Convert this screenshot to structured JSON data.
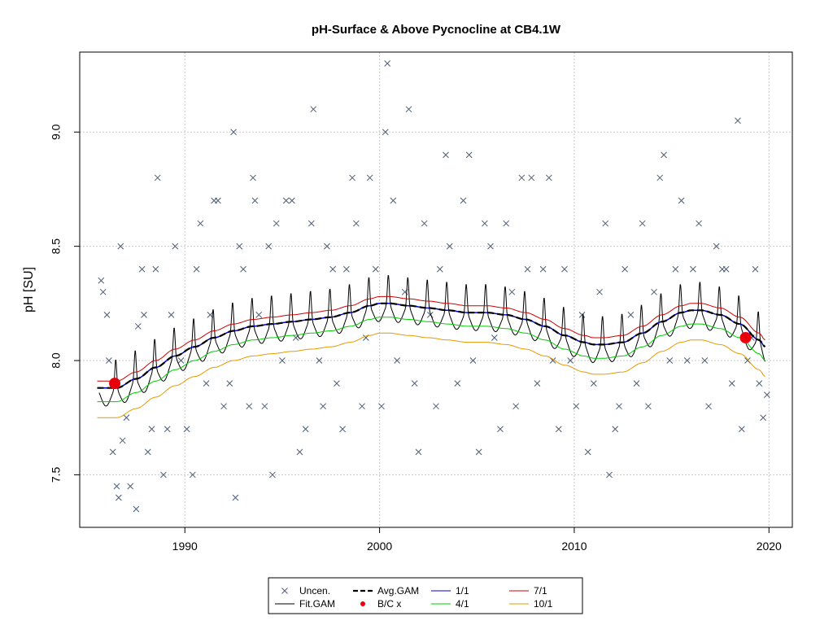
{
  "chart_data": {
    "type": "line",
    "title": "pH-Surface & Above Pycnocline at CB4.1W",
    "xlabel": "",
    "ylabel": "pH [SU]",
    "xlim": [
      1984.6,
      2021.2
    ],
    "ylim": [
      7.27,
      9.35
    ],
    "x_ticks": [
      1990,
      2000,
      2010,
      2020
    ],
    "y_ticks": [
      7.5,
      8.0,
      8.5,
      9.0
    ],
    "x_tick_labels": [
      "1990",
      "2000",
      "2010",
      "2020"
    ],
    "y_tick_labels": [
      "7.5",
      "8.0",
      "8.5",
      "9.0"
    ],
    "grid": true,
    "legend_position": "bottom-center",
    "legend": [
      {
        "key": "uncen",
        "label": "Uncen.",
        "marker": "x",
        "color": "#4d5d73"
      },
      {
        "key": "fit",
        "label": "Fit.GAM",
        "marker": "line",
        "color": "#000000"
      },
      {
        "key": "avg",
        "label": "Avg.GAM",
        "marker": "dashed",
        "color": "#000000"
      },
      {
        "key": "bc",
        "label": "B/C x",
        "marker": "dot",
        "color": "#e8000b"
      },
      {
        "key": "p11",
        "label": "1/1",
        "marker": "line",
        "color": "#0000cc"
      },
      {
        "key": "p41",
        "label": "4/1",
        "marker": "line",
        "color": "#00cc00"
      },
      {
        "key": "p71",
        "label": "7/1",
        "marker": "line",
        "color": "#cc0000"
      },
      {
        "key": "p101",
        "label": "10/1",
        "marker": "line",
        "color": "#e69a00"
      }
    ],
    "avg_gam": {
      "x": [
        1985.5,
        1986.5,
        1987.5,
        1988.5,
        1989.5,
        1990.5,
        1991.5,
        1992.5,
        1993.5,
        1994.5,
        1995.5,
        1996.5,
        1997.5,
        1998.5,
        1999.5,
        2000.0,
        2000.5,
        2001.5,
        2002.5,
        2003.5,
        2004.5,
        2005.5,
        2006.5,
        2007.5,
        2008.5,
        2009.5,
        2010.5,
        2011.0,
        2011.5,
        2012.5,
        2013.5,
        2014.5,
        2015.5,
        2016.0,
        2016.5,
        2017.5,
        2018.5,
        2019.5,
        2019.8
      ],
      "y": [
        7.88,
        7.88,
        7.92,
        7.97,
        8.02,
        8.06,
        8.1,
        8.13,
        8.15,
        8.16,
        8.17,
        8.18,
        8.19,
        8.21,
        8.24,
        8.25,
        8.25,
        8.24,
        8.23,
        8.22,
        8.21,
        8.21,
        8.2,
        8.18,
        8.15,
        8.11,
        8.08,
        8.07,
        8.07,
        8.08,
        8.12,
        8.17,
        8.21,
        8.22,
        8.22,
        8.2,
        8.16,
        8.09,
        8.06
      ]
    },
    "seasonal_offsets": {
      "p11": 0.0,
      "p41": -0.06,
      "p71": 0.03,
      "p101": -0.13
    },
    "fit_gam": {
      "start": 1985.6,
      "end": 2019.8,
      "seasonal_amplitude": 0.24
    },
    "bc_points": [
      {
        "x": 1986.4,
        "y": 7.9
      },
      {
        "x": 2018.8,
        "y": 8.1
      }
    ],
    "uncen": [
      [
        1985.7,
        8.35
      ],
      [
        1985.8,
        8.3
      ],
      [
        1986.0,
        8.2
      ],
      [
        1986.1,
        8.0
      ],
      [
        1986.3,
        7.6
      ],
      [
        1986.5,
        7.45
      ],
      [
        1986.6,
        7.4
      ],
      [
        1986.7,
        8.5
      ],
      [
        1986.8,
        7.65
      ],
      [
        1987.0,
        7.75
      ],
      [
        1987.2,
        7.45
      ],
      [
        1987.5,
        7.35
      ],
      [
        1987.6,
        8.15
      ],
      [
        1987.8,
        8.4
      ],
      [
        1987.9,
        8.2
      ],
      [
        1988.1,
        7.6
      ],
      [
        1988.3,
        7.7
      ],
      [
        1988.5,
        8.4
      ],
      [
        1988.6,
        8.8
      ],
      [
        1988.9,
        7.5
      ],
      [
        1989.1,
        7.7
      ],
      [
        1989.3,
        8.2
      ],
      [
        1989.5,
        8.5
      ],
      [
        1989.8,
        8.0
      ],
      [
        1990.1,
        7.7
      ],
      [
        1990.4,
        7.5
      ],
      [
        1990.6,
        8.4
      ],
      [
        1990.8,
        8.6
      ],
      [
        1991.1,
        7.9
      ],
      [
        1991.3,
        8.2
      ],
      [
        1991.5,
        8.7
      ],
      [
        1991.7,
        8.7
      ],
      [
        1992.0,
        7.8
      ],
      [
        1992.3,
        7.9
      ],
      [
        1992.5,
        9.0
      ],
      [
        1992.6,
        7.4
      ],
      [
        1992.8,
        8.5
      ],
      [
        1993.0,
        8.4
      ],
      [
        1993.3,
        7.8
      ],
      [
        1993.5,
        8.8
      ],
      [
        1993.6,
        8.7
      ],
      [
        1993.8,
        8.2
      ],
      [
        1994.1,
        7.8
      ],
      [
        1994.3,
        8.5
      ],
      [
        1994.5,
        7.5
      ],
      [
        1994.7,
        8.6
      ],
      [
        1995.0,
        8.0
      ],
      [
        1995.2,
        8.7
      ],
      [
        1995.5,
        8.7
      ],
      [
        1995.7,
        8.1
      ],
      [
        1995.9,
        7.6
      ],
      [
        1996.2,
        7.7
      ],
      [
        1996.5,
        8.6
      ],
      [
        1996.6,
        9.1
      ],
      [
        1996.9,
        8.0
      ],
      [
        1997.1,
        7.8
      ],
      [
        1997.3,
        8.5
      ],
      [
        1997.6,
        8.4
      ],
      [
        1997.8,
        7.9
      ],
      [
        1998.1,
        7.7
      ],
      [
        1998.3,
        8.4
      ],
      [
        1998.6,
        8.8
      ],
      [
        1998.8,
        8.6
      ],
      [
        1999.1,
        7.8
      ],
      [
        1999.3,
        8.1
      ],
      [
        1999.5,
        8.8
      ],
      [
        1999.8,
        8.4
      ],
      [
        2000.1,
        7.8
      ],
      [
        2000.3,
        9.0
      ],
      [
        2000.4,
        9.3
      ],
      [
        2000.7,
        8.7
      ],
      [
        2000.9,
        8.0
      ],
      [
        2001.3,
        8.3
      ],
      [
        2001.5,
        9.1
      ],
      [
        2001.8,
        7.9
      ],
      [
        2002.0,
        7.6
      ],
      [
        2002.3,
        8.6
      ],
      [
        2002.6,
        8.2
      ],
      [
        2002.9,
        7.8
      ],
      [
        2003.1,
        8.4
      ],
      [
        2003.4,
        8.9
      ],
      [
        2003.6,
        8.5
      ],
      [
        2004.0,
        7.9
      ],
      [
        2004.3,
        8.7
      ],
      [
        2004.6,
        8.9
      ],
      [
        2004.8,
        8.0
      ],
      [
        2005.1,
        7.6
      ],
      [
        2005.4,
        8.6
      ],
      [
        2005.7,
        8.5
      ],
      [
        2005.9,
        8.1
      ],
      [
        2006.2,
        7.7
      ],
      [
        2006.5,
        8.6
      ],
      [
        2006.8,
        8.3
      ],
      [
        2007.0,
        7.8
      ],
      [
        2007.3,
        8.8
      ],
      [
        2007.6,
        8.4
      ],
      [
        2007.8,
        8.8
      ],
      [
        2008.1,
        7.9
      ],
      [
        2008.4,
        8.4
      ],
      [
        2008.7,
        8.8
      ],
      [
        2008.9,
        8.0
      ],
      [
        2009.2,
        7.7
      ],
      [
        2009.5,
        8.4
      ],
      [
        2009.8,
        8.0
      ],
      [
        2010.1,
        7.8
      ],
      [
        2010.4,
        8.2
      ],
      [
        2010.7,
        7.6
      ],
      [
        2011.0,
        7.9
      ],
      [
        2011.3,
        8.3
      ],
      [
        2011.6,
        8.6
      ],
      [
        2011.8,
        7.5
      ],
      [
        2012.1,
        7.7
      ],
      [
        2012.3,
        7.8
      ],
      [
        2012.6,
        8.4
      ],
      [
        2012.9,
        8.2
      ],
      [
        2013.2,
        7.9
      ],
      [
        2013.5,
        8.6
      ],
      [
        2013.8,
        7.8
      ],
      [
        2014.1,
        8.3
      ],
      [
        2014.4,
        8.8
      ],
      [
        2014.6,
        8.9
      ],
      [
        2014.9,
        8.0
      ],
      [
        2015.2,
        8.4
      ],
      [
        2015.5,
        8.7
      ],
      [
        2015.8,
        8.0
      ],
      [
        2016.1,
        8.4
      ],
      [
        2016.4,
        8.6
      ],
      [
        2016.7,
        8.0
      ],
      [
        2016.9,
        7.8
      ],
      [
        2017.3,
        8.5
      ],
      [
        2017.6,
        8.4
      ],
      [
        2017.8,
        8.4
      ],
      [
        2018.1,
        7.9
      ],
      [
        2018.4,
        9.05
      ],
      [
        2018.6,
        7.7
      ],
      [
        2018.9,
        8.0
      ],
      [
        2019.1,
        8.1
      ],
      [
        2019.3,
        8.4
      ],
      [
        2019.5,
        7.9
      ],
      [
        2019.7,
        7.75
      ],
      [
        2019.9,
        7.85
      ]
    ]
  }
}
